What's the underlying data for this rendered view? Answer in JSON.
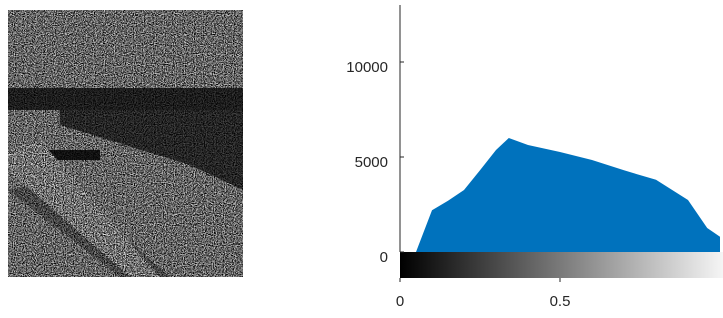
{
  "chart_data": {
    "type": "area",
    "color": "#0072bd",
    "x": [
      0.05,
      0.1,
      0.15,
      0.2,
      0.25,
      0.3,
      0.34,
      0.4,
      0.5,
      0.6,
      0.7,
      0.8,
      0.9,
      0.96,
      1
    ],
    "values": [
      0,
      2200,
      2700,
      3260,
      4300,
      5370,
      6000,
      5630,
      5260,
      4840,
      4300,
      3800,
      2740,
      1260,
      800
    ],
    "xlim": [
      0,
      1
    ],
    "xticks": [
      0,
      0.5
    ],
    "ylim": [
      0,
      13000
    ],
    "yticks": [
      0,
      5000,
      10000
    ]
  }
}
